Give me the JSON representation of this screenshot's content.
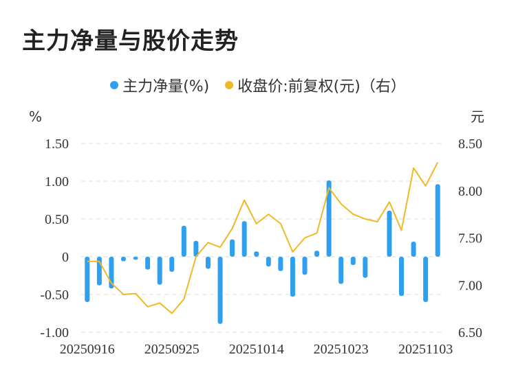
{
  "title": "主力净量与股价走势",
  "legend": {
    "series1": "主力净量(%)",
    "series2": "收盘价:前复权(元)（右）"
  },
  "colors": {
    "bar": "#2f9ff0",
    "line": "#f0b823",
    "grid": "#dddddd"
  },
  "chart_data": {
    "type": "bar+line",
    "left_unit": "%",
    "right_unit": "元",
    "left_ticks": [
      "1.50",
      "1.00",
      "0.50",
      "0",
      "-0.50",
      "-1.00"
    ],
    "right_ticks": [
      "8.50",
      "8.00",
      "7.50",
      "7.00",
      "6.50"
    ],
    "left_range": [
      -1.0,
      1.5
    ],
    "right_range": [
      6.5,
      8.5
    ],
    "x_labels": [
      "20250916",
      "20250925",
      "20251014",
      "20251023",
      "20251103"
    ],
    "x_label_index": [
      0,
      7,
      14,
      21,
      28
    ],
    "bars": [
      -0.6,
      -0.38,
      -0.42,
      -0.06,
      -0.04,
      -0.17,
      -0.37,
      -0.2,
      0.41,
      0.21,
      -0.16,
      -0.89,
      0.23,
      0.47,
      0.07,
      -0.13,
      -0.19,
      -0.53,
      -0.24,
      0.08,
      1.01,
      -0.36,
      -0.11,
      -0.28,
      0.0,
      0.61,
      -0.52,
      0.2,
      -0.6,
      0.96
    ],
    "line": [
      7.25,
      7.25,
      7.02,
      6.9,
      6.91,
      6.77,
      6.81,
      6.7,
      6.85,
      7.3,
      7.45,
      7.4,
      7.6,
      7.9,
      7.65,
      7.75,
      7.65,
      7.35,
      7.5,
      7.55,
      8.03,
      7.86,
      7.75,
      7.7,
      7.67,
      7.88,
      7.58,
      8.24,
      8.05,
      8.3
    ]
  }
}
